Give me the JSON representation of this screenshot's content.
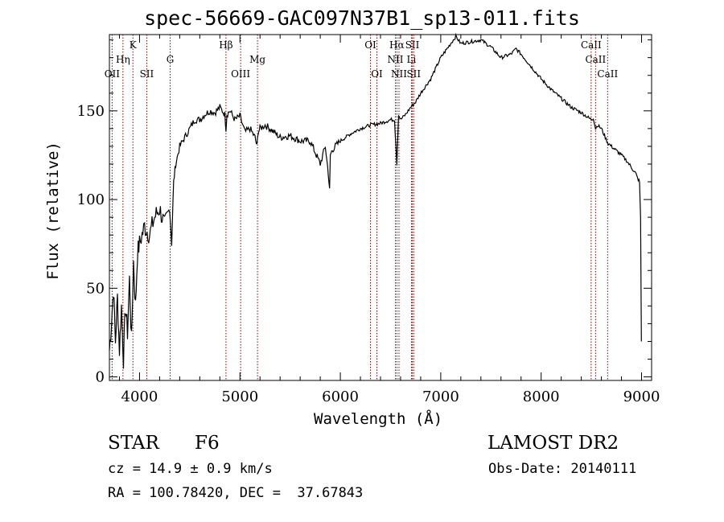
{
  "header": {
    "title": "spec-56669-GAC097N37B1_sp13-011.fits"
  },
  "info": {
    "object_class": "STAR",
    "subclass": "F6",
    "survey": "LAMOST DR2",
    "cz": "cz = 14.9 ± 0.9 km/s",
    "obs_date": "Obs-Date: 20140111",
    "radec": "RA = 100.78420, DEC =  37.67843"
  },
  "chart_data": {
    "type": "line",
    "title": "spec-56669-GAC097N37B1_sp13-011.fits",
    "xlabel": "Wavelength (Å)",
    "ylabel": "Flux (relative)",
    "xlim": [
      3700,
      9100
    ],
    "ylim": [
      -2,
      193
    ],
    "x_ticks": [
      4000,
      5000,
      6000,
      7000,
      8000,
      9000
    ],
    "y_ticks": [
      0,
      50,
      100,
      150
    ],
    "grid": false,
    "line_color": "#000000",
    "marker_color": "#8b0000",
    "series": [
      {
        "x": [
          3700,
          3720,
          3740,
          3760,
          3780,
          3800,
          3820,
          3840,
          3860,
          3880,
          3900,
          3920,
          3940,
          3960,
          3980,
          4000,
          4050,
          4100,
          4150,
          4200,
          4250,
          4300,
          4320,
          4340,
          4360,
          4400,
          4450,
          4500,
          4550,
          4600,
          4650,
          4700,
          4750,
          4800,
          4850,
          4861,
          4870,
          4900,
          4950,
          5000,
          5050,
          5100,
          5150,
          5170,
          5180,
          5200,
          5250,
          5300,
          5400,
          5500,
          5600,
          5700,
          5800,
          5850,
          5880,
          5893,
          5900,
          5920,
          5950,
          6000,
          6100,
          6200,
          6300,
          6400,
          6500,
          6540,
          6563,
          6580,
          6600,
          6650,
          6700,
          6750,
          6800,
          6900,
          7000,
          7050,
          7100,
          7150,
          7200,
          7300,
          7400,
          7500,
          7600,
          7700,
          7750,
          7800,
          7900,
          8000,
          8100,
          8200,
          8300,
          8400,
          8500,
          8520,
          8542,
          8560,
          8600,
          8662,
          8700,
          8800,
          8850,
          8900,
          8940,
          8960,
          8980,
          8990,
          8998
        ],
        "y": [
          15,
          30,
          50,
          20,
          45,
          15,
          40,
          10,
          40,
          25,
          55,
          20,
          65,
          40,
          70,
          75,
          85,
          80,
          90,
          95,
          85,
          95,
          75,
          110,
          120,
          130,
          135,
          140,
          145,
          145,
          148,
          150,
          149,
          152,
          148,
          140,
          148,
          150,
          145,
          147,
          138,
          140,
          135,
          130,
          138,
          140,
          142,
          140,
          135,
          136,
          133,
          133,
          120,
          130,
          115,
          105,
          125,
          128,
          130,
          133,
          137,
          140,
          142,
          143,
          145,
          145,
          120,
          148,
          145,
          148,
          152,
          155,
          160,
          168,
          180,
          184,
          188,
          192,
          188,
          189,
          190,
          186,
          180,
          182,
          185,
          182,
          175,
          168,
          162,
          157,
          152,
          149,
          145,
          146,
          140,
          142,
          140,
          132,
          130,
          125,
          122,
          118,
          115,
          112,
          110,
          90,
          20
        ]
      }
    ],
    "lines": [
      {
        "label": "OII",
        "x": 3727,
        "row": 2
      },
      {
        "label": "Hη",
        "x": 3835,
        "row": 1
      },
      {
        "label": "K",
        "x": 3934,
        "row": 0
      },
      {
        "label": "SII",
        "x": 4072,
        "row": 2
      },
      {
        "label": "G",
        "x": 4305,
        "row": 1
      },
      {
        "label": "Hβ",
        "x": 4861,
        "row": 0
      },
      {
        "label": "OIII",
        "x": 5007,
        "row": 2
      },
      {
        "label": "Mg",
        "x": 5175,
        "row": 1
      },
      {
        "label": "OI",
        "x": 6300,
        "row": 0
      },
      {
        "label": "OI",
        "x": 6364,
        "row": 2
      },
      {
        "label": "Hα",
        "x": 6563,
        "row": 0
      },
      {
        "label": "NII",
        "x": 6548,
        "row": 1
      },
      {
        "label": "NII",
        "x": 6584,
        "row": 2
      },
      {
        "label": "SII",
        "x": 6717,
        "row": 0
      },
      {
        "label": "Li",
        "x": 6708,
        "row": 1
      },
      {
        "label": "SII",
        "x": 6731,
        "row": 2
      },
      {
        "label": "CaII",
        "x": 8498,
        "row": 0
      },
      {
        "label": "CaII",
        "x": 8542,
        "row": 1
      },
      {
        "label": "CaII",
        "x": 8662,
        "row": 2
      }
    ]
  }
}
